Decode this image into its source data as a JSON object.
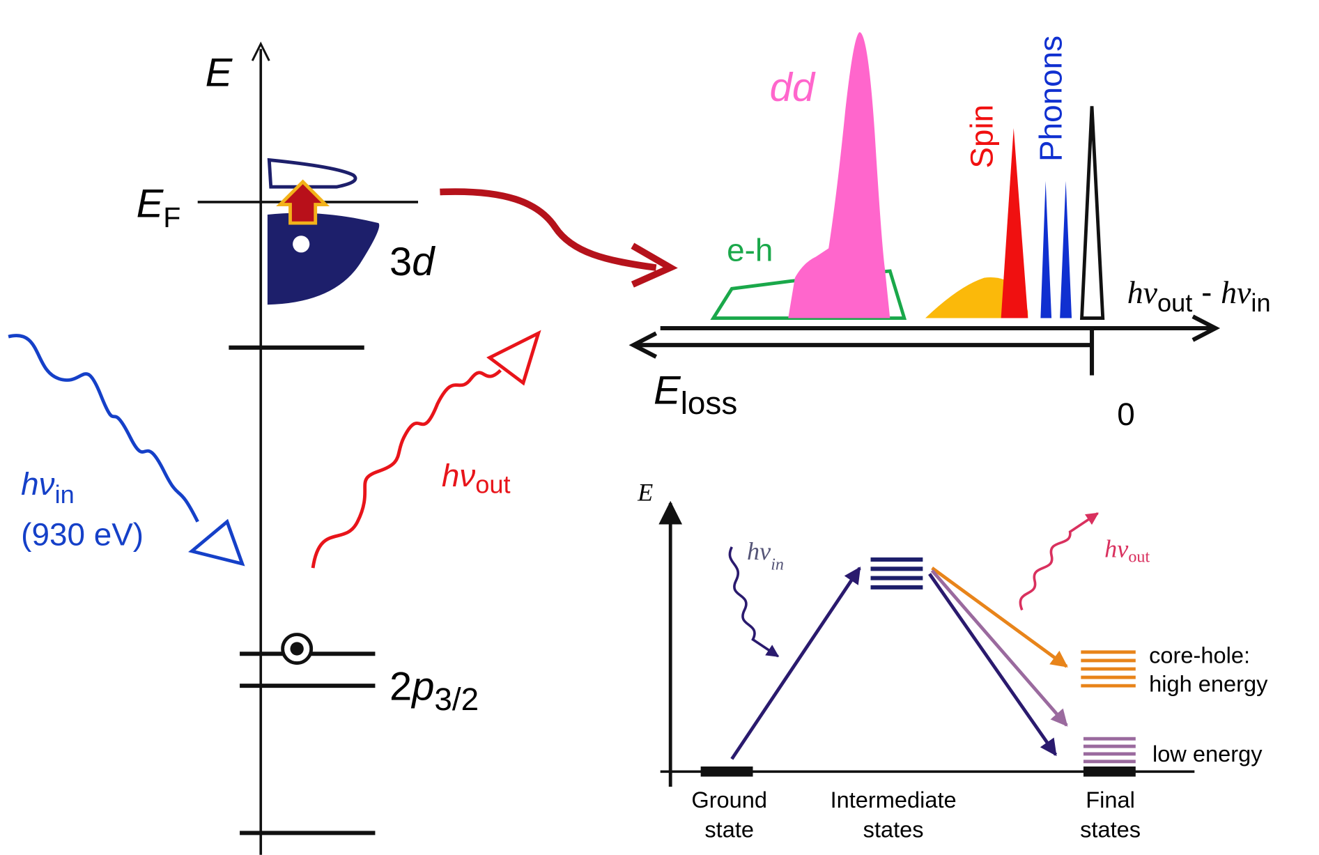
{
  "level_diagram": {
    "axis_label": "E",
    "fermi": {
      "main": "E",
      "sub": "F"
    },
    "band": {
      "num": "3",
      "italic": "d"
    },
    "core": {
      "num": "2",
      "italic": "p",
      "sub": "3/2"
    },
    "photon_in": {
      "symbol": "hν",
      "sub": "in",
      "energy": "(930 eV)"
    },
    "photon_out": {
      "symbol": "hν",
      "sub": "out"
    }
  },
  "spectrum": {
    "peaks": [
      "dd",
      "e-h",
      "Spin",
      "Phonons"
    ],
    "x_axis": {
      "symbol_out": "hν",
      "sub_out": "out",
      "sep": " - ",
      "symbol_in": "hν",
      "sub_in": "in"
    },
    "loss_axis": {
      "main": "E",
      "sub": "loss"
    },
    "zero": "0"
  },
  "scheme": {
    "axis_label": "E",
    "photon_in": {
      "symbol": "hν",
      "sub": "in"
    },
    "photon_out": {
      "symbol": "hν",
      "sub": "out"
    },
    "ground": [
      "Ground",
      "state"
    ],
    "intermediate": [
      "Intermediate",
      "states"
    ],
    "final": [
      "Final",
      "states"
    ],
    "core_hole": [
      "core-hole:",
      "high energy"
    ],
    "low_energy": "low energy"
  }
}
